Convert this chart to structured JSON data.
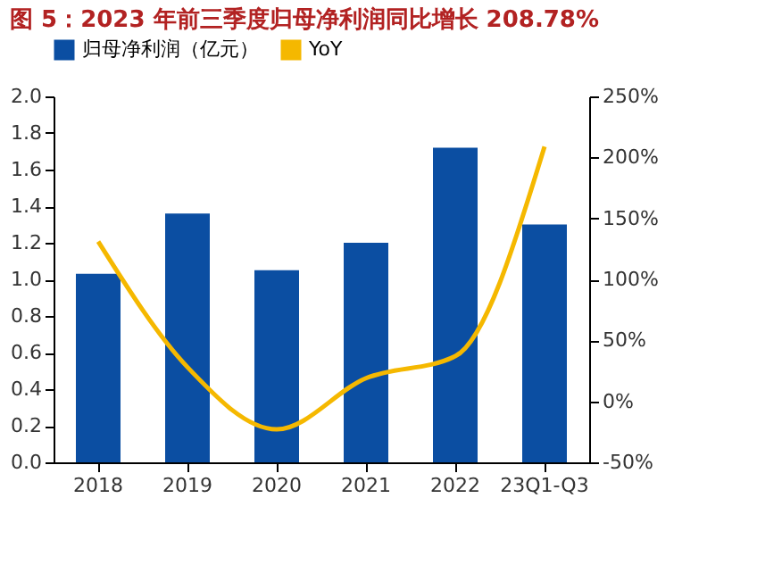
{
  "chart_data": {
    "type": "bar",
    "title": "图 5：2023 年前三季度归母净利润同比增长 208.78%",
    "categories": [
      "2018",
      "2019",
      "2020",
      "2021",
      "2022",
      "23Q1-Q3"
    ],
    "series": [
      {
        "name": "归母净利润（亿元）",
        "color": "#0b4ea2",
        "values": [
          1.03,
          1.36,
          1.05,
          1.2,
          1.72,
          1.3
        ]
      },
      {
        "name": "YoY",
        "type": "line",
        "axis": "y2",
        "color": "#f5b800",
        "values": [
          131,
          28,
          -23,
          19,
          37,
          208.78
        ]
      }
    ],
    "ylim": [
      0,
      2
    ],
    "yticks": [
      {
        "value": 0,
        "label": "0.0"
      },
      0.2,
      0.4,
      0.6,
      0.8,
      {
        "value": 1,
        "label": "1.0"
      },
      1.2,
      1.4,
      1.6,
      1.8,
      {
        "value": 2,
        "label": "2.0"
      }
    ],
    "y2lim": [
      -50,
      250
    ],
    "y2ticks": [
      {
        "value": -50,
        "label": "-50%"
      },
      {
        "value": 0,
        "label": "0%"
      },
      {
        "value": 50,
        "label": "50%"
      },
      {
        "value": 100,
        "label": "100%"
      },
      {
        "value": 150,
        "label": "150%"
      },
      {
        "value": 200,
        "label": "200%"
      },
      {
        "value": 250,
        "label": "250%"
      }
    ],
    "legend": "top",
    "grid": false,
    "marker": "none",
    "line_style": "solid"
  }
}
